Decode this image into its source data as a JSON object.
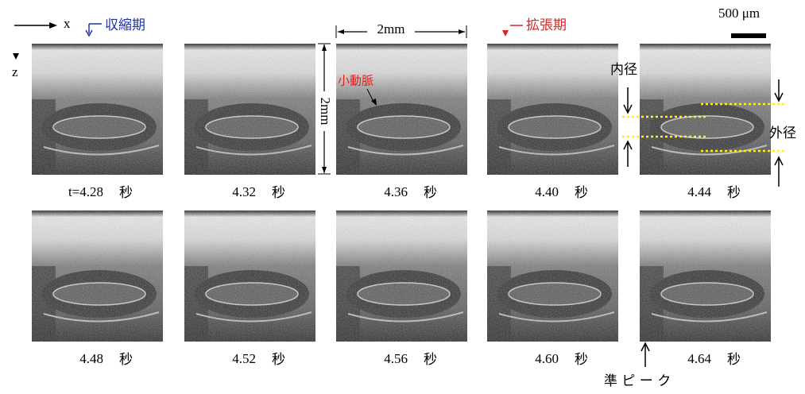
{
  "axes": {
    "x": "x",
    "z": "z"
  },
  "phases": {
    "systole": "収縮期",
    "diastole": "拡張期"
  },
  "annotations": {
    "width": "2mm",
    "height": "2mm",
    "arteriole": "小動脈",
    "inner_diameter": "内径",
    "outer_diameter": "外径",
    "quasi_peak": "準 ピ ー ク"
  },
  "scale_bar": "500 μm",
  "frames": [
    {
      "time": "t=4.28",
      "unit": "秒"
    },
    {
      "time": "4.32",
      "unit": "秒"
    },
    {
      "time": "4.36",
      "unit": "秒"
    },
    {
      "time": "4.40",
      "unit": "秒"
    },
    {
      "time": "4.44",
      "unit": "秒"
    },
    {
      "time": "4.48",
      "unit": "秒"
    },
    {
      "time": "4.52",
      "unit": "秒"
    },
    {
      "time": "4.56",
      "unit": "秒"
    },
    {
      "time": "4.60",
      "unit": "秒"
    },
    {
      "time": "4.64",
      "unit": "秒"
    }
  ]
}
